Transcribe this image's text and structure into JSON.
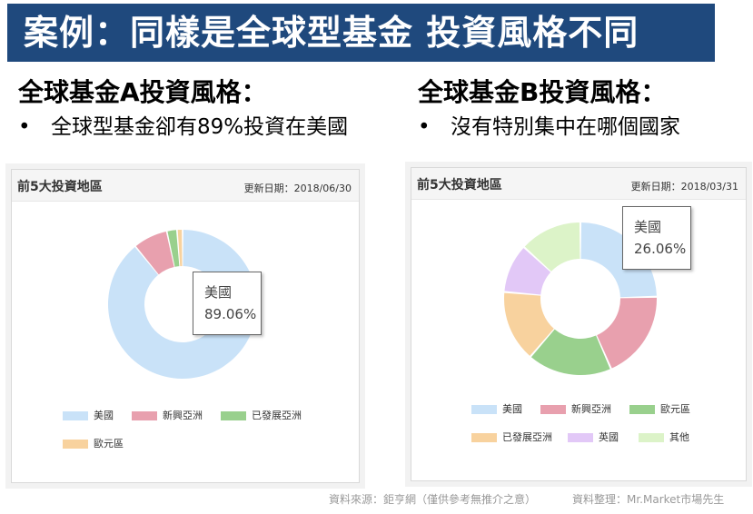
{
  "title": "案例：同樣是全球型基金 投資風格不同",
  "left": {
    "heading": "全球基金A投資風格：",
    "bullet": "全球型基金卻有89%投資在美國"
  },
  "right": {
    "heading": "全球基金B投資風格：",
    "bullet": "沒有特別集中在哪個國家"
  },
  "bullet_symbol": "•",
  "footer": {
    "source": "資料來源：鉅亨網（僅供參考無推介之意）",
    "credit": "資料整理：Mr.Market市場先生"
  },
  "chart_data": [
    {
      "type": "donut",
      "title": "前5大投資地區",
      "date_label": "更新日期：2018/06/30",
      "categories": [
        "美國",
        "新興亞洲",
        "已發展亞洲",
        "歐元區"
      ],
      "values": [
        89.06,
        7.5,
        2.2,
        1.2
      ],
      "colors": [
        "#c9e2f8",
        "#e8a0ae",
        "#99d08d",
        "#f8d29e"
      ],
      "tooltip": {
        "label": "美國",
        "value": "89.06%"
      }
    },
    {
      "type": "donut",
      "title": "前5大投資地區",
      "date_label": "更新日期：2018/03/31",
      "categories": [
        "美國",
        "新興亞洲",
        "歐元區",
        "已發展亞洲",
        "英國",
        "其他"
      ],
      "values": [
        26.06,
        20.0,
        19.0,
        16.0,
        11.0,
        14.0
      ],
      "colors": [
        "#c9e2f8",
        "#e8a0ae",
        "#99d08d",
        "#f8d29e",
        "#e2c8f7",
        "#dcf3c8"
      ],
      "tooltip": {
        "label": "美國",
        "value": "26.06%"
      }
    }
  ]
}
